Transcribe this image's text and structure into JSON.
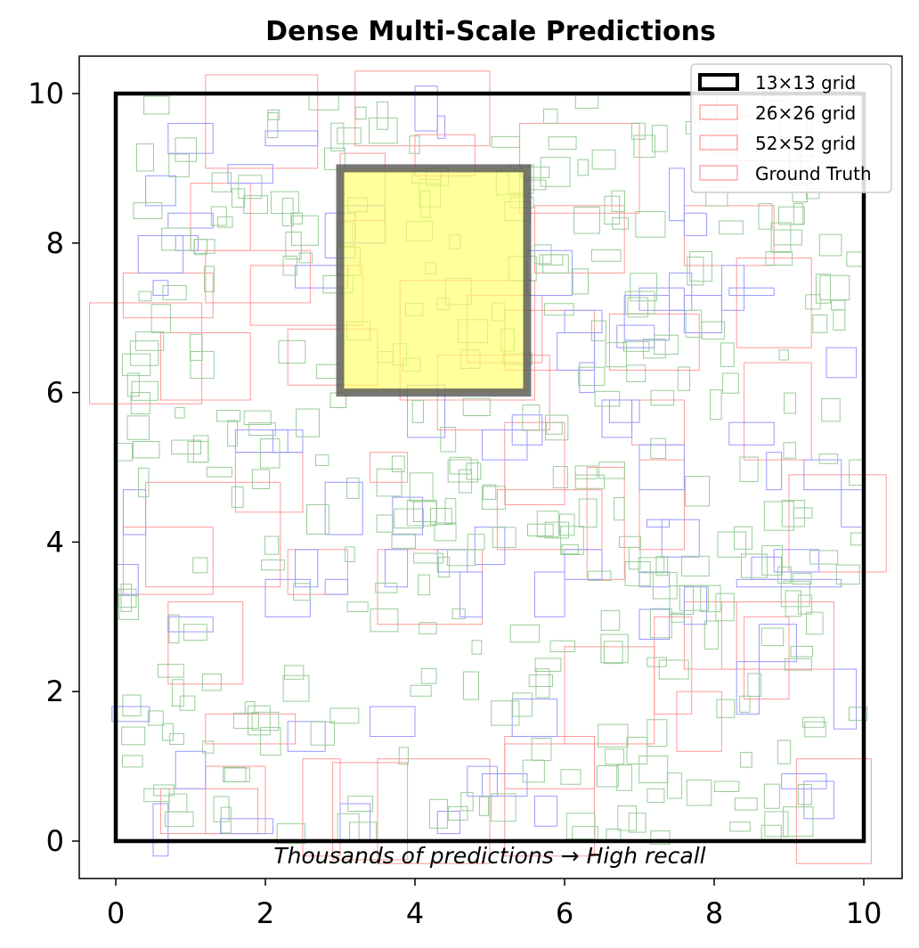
{
  "chart_data": {
    "type": "scatter",
    "title": "Dense Multi-Scale Predictions",
    "xlabel": "",
    "ylabel": "",
    "xlim": [
      -0.5,
      10.5
    ],
    "ylim": [
      -0.5,
      10.5
    ],
    "xticks": [
      0,
      2,
      4,
      6,
      8,
      10
    ],
    "yticks": [
      0,
      2,
      4,
      6,
      8,
      10
    ],
    "grid": false,
    "legend_position": "top-right",
    "annotation": {
      "text": "Thousands of predictions → High recall",
      "x": 5,
      "y": -0.2
    },
    "colors": {
      "grid_13": "#000000",
      "grid_26": "#ff8080",
      "grid_52": "#ff8080",
      "ground_truth": "#ff8080",
      "large_boxes": "#ff9999",
      "medium_boxes": "#9999ff",
      "small_boxes": "#99cc99",
      "highlight": "#ffff66"
    },
    "legend": [
      {
        "label": "13×13 grid",
        "color": "#000000",
        "style": "thick"
      },
      {
        "label": "26×26 grid",
        "color": "#ff8080",
        "style": "thin"
      },
      {
        "label": "52×52 grid",
        "color": "#ff8080",
        "style": "thin"
      },
      {
        "label": "Ground Truth",
        "color": "#ff8080",
        "style": "thin"
      }
    ],
    "outer_box": {
      "x": 0,
      "y": 0,
      "w": 10,
      "h": 10,
      "color": "#000000"
    },
    "highlight_box": {
      "x": 3,
      "y": 6,
      "w": 2.5,
      "h": 3,
      "fill": "#ffff66",
      "edge": "#555555"
    },
    "large_boxes": [
      [
        1.2,
        9.0,
        1.5,
        1.25
      ],
      [
        3.2,
        9.3,
        1.8,
        1.0
      ],
      [
        5.4,
        8.4,
        1.6,
        1.2
      ],
      [
        5.6,
        7.6,
        1.2,
        0.9
      ],
      [
        8.3,
        9.1,
        1.0,
        0.6
      ],
      [
        7.6,
        7.7,
        1.2,
        0.8
      ],
      [
        8.3,
        6.6,
        1.0,
        1.2
      ],
      [
        -0.35,
        5.85,
        1.5,
        1.35
      ],
      [
        0.1,
        7.0,
        1.2,
        0.6
      ],
      [
        1.2,
        7.2,
        1.4,
        0.7
      ],
      [
        1.8,
        6.9,
        1.5,
        0.8
      ],
      [
        0.6,
        5.9,
        1.2,
        0.9
      ],
      [
        2.3,
        6.1,
        1.2,
        0.75
      ],
      [
        3.8,
        5.9,
        1.8,
        1.6
      ],
      [
        4.3,
        5.5,
        1.5,
        1.0
      ],
      [
        4.7,
        6.4,
        1.0,
        0.9
      ],
      [
        5.2,
        6.3,
        1.2,
        0.8
      ],
      [
        6.6,
        6.3,
        1.2,
        0.75
      ],
      [
        8.4,
        5.1,
        0.9,
        1.3
      ],
      [
        9.0,
        3.6,
        1.3,
        1.3
      ],
      [
        0.1,
        3.3,
        1.2,
        0.9
      ],
      [
        0.7,
        2.1,
        1.0,
        1.1
      ],
      [
        0.4,
        3.4,
        1.8,
        1.4
      ],
      [
        1.6,
        4.4,
        0.9,
        0.8
      ],
      [
        2.3,
        3.3,
        0.8,
        0.6
      ],
      [
        3.5,
        2.9,
        1.4,
        1.0
      ],
      [
        3.4,
        4.8,
        0.5,
        0.4
      ],
      [
        5.1,
        3.9,
        1.4,
        0.8
      ],
      [
        5.2,
        4.5,
        0.8,
        1.1
      ],
      [
        6.3,
        3.5,
        0.5,
        1.5
      ],
      [
        7.0,
        3.9,
        0.6,
        1.2
      ],
      [
        7.2,
        1.7,
        0.5,
        1.3
      ],
      [
        6.0,
        1.3,
        1.2,
        1.3
      ],
      [
        7.5,
        1.2,
        0.6,
        0.8
      ],
      [
        7.6,
        2.3,
        0.7,
        0.9
      ],
      [
        8.4,
        1.9,
        0.6,
        1.1
      ],
      [
        8.1,
        2.3,
        1.5,
        0.9
      ],
      [
        5.2,
        -0.2,
        1.2,
        1.6
      ],
      [
        5.2,
        0.7,
        1.2,
        0.6
      ],
      [
        2.5,
        -0.2,
        0.5,
        1.3
      ],
      [
        2.9,
        -0.25,
        1.0,
        1.3
      ],
      [
        3.5,
        -0.3,
        1.5,
        1.4
      ],
      [
        1.2,
        1.3,
        1.2,
        0.4
      ],
      [
        1.2,
        0.1,
        0.8,
        0.9
      ],
      [
        0.6,
        0.1,
        1.3,
        0.6
      ],
      [
        9.1,
        -0.3,
        1.0,
        1.4
      ],
      [
        6.9,
        5.3,
        0.7,
        0.6
      ],
      [
        3.0,
        8.3,
        0.6,
        0.9
      ],
      [
        1.0,
        7.9,
        0.8,
        0.9
      ],
      [
        4.0,
        8.9,
        0.8,
        0.55
      ]
    ],
    "medium_boxes": [
      [
        0.7,
        9.2,
        0.6,
        0.4
      ],
      [
        0.4,
        8.5,
        0.4,
        0.4
      ],
      [
        1.5,
        8.8,
        0.6,
        0.25
      ],
      [
        2.0,
        9.3,
        0.7,
        0.2
      ],
      [
        4.0,
        9.5,
        0.3,
        0.6
      ],
      [
        4.3,
        9.4,
        0.1,
        0.3
      ],
      [
        2.8,
        7.8,
        0.4,
        0.6
      ],
      [
        2.4,
        7.4,
        0.7,
        0.3
      ],
      [
        3.0,
        8.0,
        0.6,
        0.5
      ],
      [
        0.3,
        7.6,
        0.6,
        0.5
      ],
      [
        0.8,
        7.9,
        0.3,
        0.2
      ],
      [
        0.5,
        7.3,
        0.2,
        0.2
      ],
      [
        0.7,
        8.2,
        0.6,
        0.2
      ],
      [
        5.5,
        7.3,
        0.6,
        0.6
      ],
      [
        6.0,
        6.8,
        0.5,
        0.3
      ],
      [
        5.9,
        6.3,
        0.5,
        0.5
      ],
      [
        6.2,
        6.0,
        0.2,
        0.4
      ],
      [
        6.8,
        6.7,
        0.6,
        0.6
      ],
      [
        6.5,
        5.4,
        0.4,
        0.5
      ],
      [
        6.6,
        5.6,
        0.4,
        0.3
      ],
      [
        6.7,
        6.6,
        0.5,
        0.3
      ],
      [
        7.0,
        7.1,
        0.6,
        0.3
      ],
      [
        7.4,
        7.1,
        0.3,
        0.5
      ],
      [
        7.6,
        8.1,
        0.3,
        0.3
      ],
      [
        8.2,
        7.3,
        0.6,
        0.1
      ],
      [
        8.1,
        7.1,
        0.3,
        0.6
      ],
      [
        7.6,
        6.8,
        0.5,
        0.5
      ],
      [
        7.4,
        8.3,
        0.2,
        0.7
      ],
      [
        9.0,
        8.8,
        0.3,
        0.2
      ],
      [
        9.5,
        6.2,
        0.4,
        0.4
      ],
      [
        8.2,
        5.3,
        0.6,
        0.3
      ],
      [
        8.7,
        4.7,
        0.2,
        0.5
      ],
      [
        9.2,
        4.7,
        0.5,
        0.4
      ],
      [
        9.7,
        4.2,
        0.3,
        0.5
      ],
      [
        8.5,
        3.5,
        0.4,
        0.3
      ],
      [
        8.3,
        3.4,
        1.4,
        0.1
      ],
      [
        7.0,
        4.7,
        0.6,
        0.6
      ],
      [
        7.1,
        4.2,
        0.3,
        0.1
      ],
      [
        7.0,
        3.4,
        0.4,
        0.2
      ],
      [
        7.3,
        3.8,
        0.5,
        0.5
      ],
      [
        8.8,
        3.6,
        0.6,
        0.3
      ],
      [
        0.1,
        4.1,
        0.3,
        0.6
      ],
      [
        0.0,
        3.3,
        0.3,
        0.4
      ],
      [
        0.7,
        2.8,
        0.6,
        0.2
      ],
      [
        2.4,
        3.4,
        0.3,
        0.5
      ],
      [
        2.8,
        3.3,
        0.3,
        0.2
      ],
      [
        2.0,
        3.0,
        0.6,
        0.5
      ],
      [
        3.6,
        3.4,
        0.3,
        0.5
      ],
      [
        4.3,
        3.6,
        0.4,
        0.3
      ],
      [
        4.6,
        3.0,
        0.3,
        0.6
      ],
      [
        5.6,
        3.0,
        0.4,
        0.6
      ],
      [
        7.0,
        2.7,
        0.4,
        0.4
      ],
      [
        7.6,
        2.9,
        0.3,
        0.5
      ],
      [
        8.6,
        2.4,
        0.5,
        0.5
      ],
      [
        8.3,
        1.7,
        0.3,
        0.7
      ],
      [
        8.9,
        0.7,
        0.6,
        0.2
      ],
      [
        9.6,
        1.5,
        0.3,
        0.8
      ],
      [
        9.2,
        0.3,
        0.4,
        0.5
      ],
      [
        4.3,
        0.1,
        0.3,
        0.3
      ],
      [
        4.9,
        0.6,
        0.6,
        0.3
      ],
      [
        5.3,
        1.4,
        0.6,
        0.5
      ],
      [
        5.6,
        0.2,
        0.3,
        0.4
      ],
      [
        2.3,
        1.2,
        0.5,
        0.4
      ],
      [
        0.8,
        0.7,
        0.4,
        0.5
      ],
      [
        0.5,
        -0.2,
        0.2,
        0.7
      ],
      [
        1.4,
        0.1,
        0.7,
        0.2
      ],
      [
        3.0,
        0.0,
        0.4,
        0.5
      ],
      [
        -0.05,
        1.6,
        0.5,
        0.2
      ],
      [
        3.4,
        1.4,
        0.6,
        0.4
      ],
      [
        4.7,
        0.6,
        0.4,
        0.4
      ],
      [
        2.1,
        5.2,
        0.4,
        0.3
      ],
      [
        2.8,
        4.1,
        0.5,
        0.7
      ],
      [
        3.7,
        4.1,
        0.4,
        0.5
      ],
      [
        4.8,
        3.7,
        0.4,
        0.5
      ],
      [
        6.0,
        3.5,
        0.5,
        0.4
      ],
      [
        1.6,
        5.2,
        0.7,
        0.3
      ],
      [
        3.9,
        5.4,
        0.5,
        0.7
      ],
      [
        5.3,
        5.3,
        0.4,
        0.4
      ],
      [
        4.9,
        5.1,
        0.6,
        0.4
      ]
    ],
    "small_boxes_count": 350
  }
}
